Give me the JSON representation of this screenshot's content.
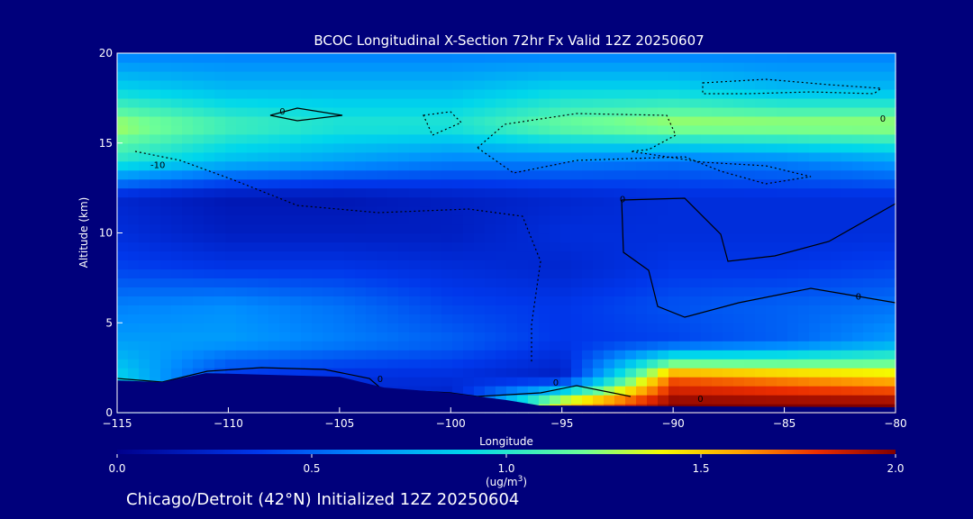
{
  "chart_data": {
    "type": "heatmap",
    "title": "BCOC Longitudinal X-Section 72hr  Fx Valid 12Z 20250607",
    "xlabel": "Longitude",
    "ylabel": "Altitude (km)",
    "xlim": [
      -115,
      -80
    ],
    "ylim": [
      0,
      20
    ],
    "x_ticks": [
      "-115",
      "-110",
      "-105",
      "-100",
      "-95",
      "-90",
      "-85",
      "-80"
    ],
    "y_ticks": [
      "0",
      "5",
      "10",
      "15",
      "20"
    ],
    "x_grid": [
      -115,
      -110,
      -105,
      -100,
      -95,
      -90,
      -85,
      -80
    ],
    "y_grid": [
      0.5,
      2,
      4,
      6,
      8,
      10,
      12,
      14,
      16,
      18,
      20
    ],
    "values": [
      [
        1.0,
        0.3,
        0.3,
        0.2,
        1.5,
        2.0,
        2.0,
        2.0
      ],
      [
        0.9,
        0.35,
        0.3,
        0.3,
        0.2,
        1.7,
        1.6,
        1.5
      ],
      [
        0.7,
        0.7,
        0.6,
        0.5,
        0.35,
        0.4,
        0.5,
        0.7
      ],
      [
        0.6,
        0.65,
        0.55,
        0.4,
        0.35,
        0.45,
        0.5,
        0.55
      ],
      [
        0.4,
        0.35,
        0.35,
        0.3,
        0.25,
        0.35,
        0.35,
        0.4
      ],
      [
        0.3,
        0.2,
        0.2,
        0.2,
        0.3,
        0.3,
        0.3,
        0.3
      ],
      [
        0.25,
        0.15,
        0.15,
        0.2,
        0.25,
        0.3,
        0.3,
        0.3
      ],
      [
        1.0,
        0.8,
        0.7,
        0.6,
        0.6,
        0.55,
        0.6,
        0.7
      ],
      [
        1.3,
        1.1,
        1.0,
        1.0,
        1.2,
        1.3,
        1.3,
        1.3
      ],
      [
        0.9,
        0.8,
        0.8,
        0.8,
        0.9,
        0.9,
        0.8,
        0.8
      ],
      [
        0.6,
        0.6,
        0.6,
        0.6,
        0.6,
        0.6,
        0.6,
        0.6
      ]
    ],
    "contour_labels": [
      "-10",
      "0",
      "0",
      "0",
      "0",
      "0",
      "0",
      "0"
    ],
    "colorbar": {
      "range": [
        0.0,
        2.0
      ],
      "ticks": [
        "0.0",
        "0.5",
        "1.0",
        "1.5",
        "2.0"
      ],
      "units_line1": "(ug/m",
      "units_sup": "3",
      "units_line2": ")"
    },
    "legend": "none",
    "grid": false
  },
  "caption": "Chicago/Detroit (42°N) Initialized 12Z 20250604"
}
